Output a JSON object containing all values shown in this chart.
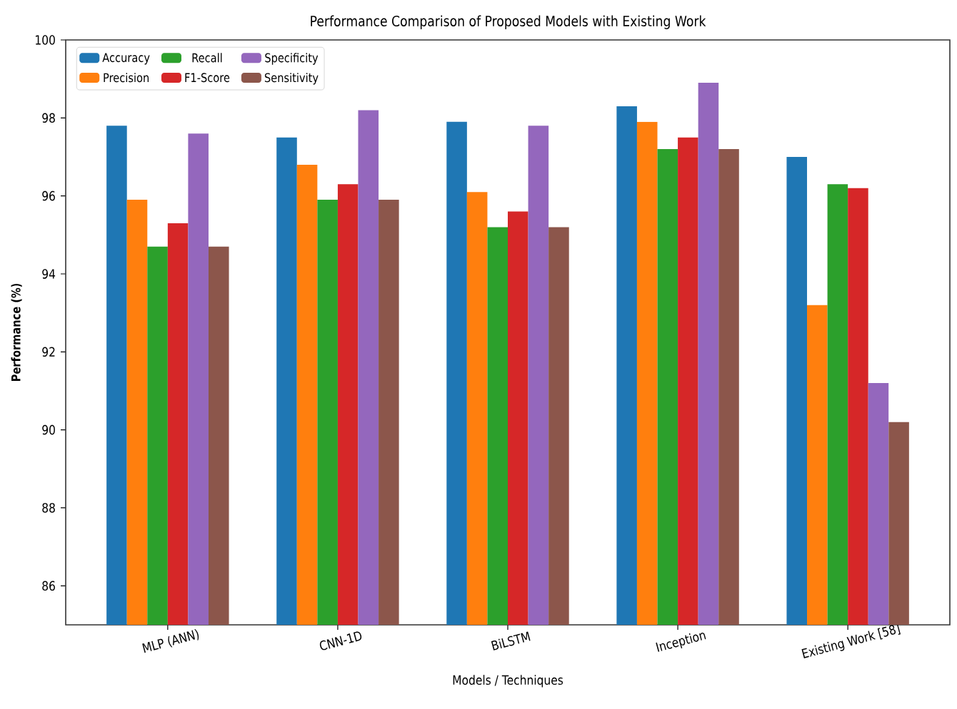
{
  "chart_data": {
    "type": "bar",
    "title": "Performance Comparison of Proposed Models with Existing Work",
    "xlabel": "Models / Techniques",
    "ylabel": "Performance (%)",
    "categories": [
      "MLP (ANN)",
      "CNN-1D",
      "BiLSTM",
      "Inception",
      "Existing Work [58]"
    ],
    "series": [
      {
        "name": "Accuracy",
        "color": "#1f77b4",
        "values": [
          97.8,
          97.5,
          97.9,
          98.3,
          97.0
        ]
      },
      {
        "name": "Precision",
        "color": "#ff7f0e",
        "values": [
          95.9,
          96.8,
          96.1,
          97.9,
          93.2
        ]
      },
      {
        "name": "Recall",
        "color": "#2ca02c",
        "values": [
          94.7,
          95.9,
          95.2,
          97.2,
          96.3
        ]
      },
      {
        "name": "F1-Score",
        "color": "#d62728",
        "values": [
          95.3,
          96.3,
          95.6,
          97.5,
          96.2
        ]
      },
      {
        "name": "Specificity",
        "color": "#9467bd",
        "values": [
          97.6,
          98.2,
          97.8,
          98.9,
          91.2
        ]
      },
      {
        "name": "Sensitivity",
        "color": "#8c564b",
        "values": [
          94.7,
          95.9,
          95.2,
          97.2,
          90.2
        ]
      }
    ],
    "ylim": [
      85,
      100
    ],
    "yticks": [
      86,
      88,
      90,
      92,
      94,
      96,
      98,
      100
    ],
    "legend": "top left"
  }
}
